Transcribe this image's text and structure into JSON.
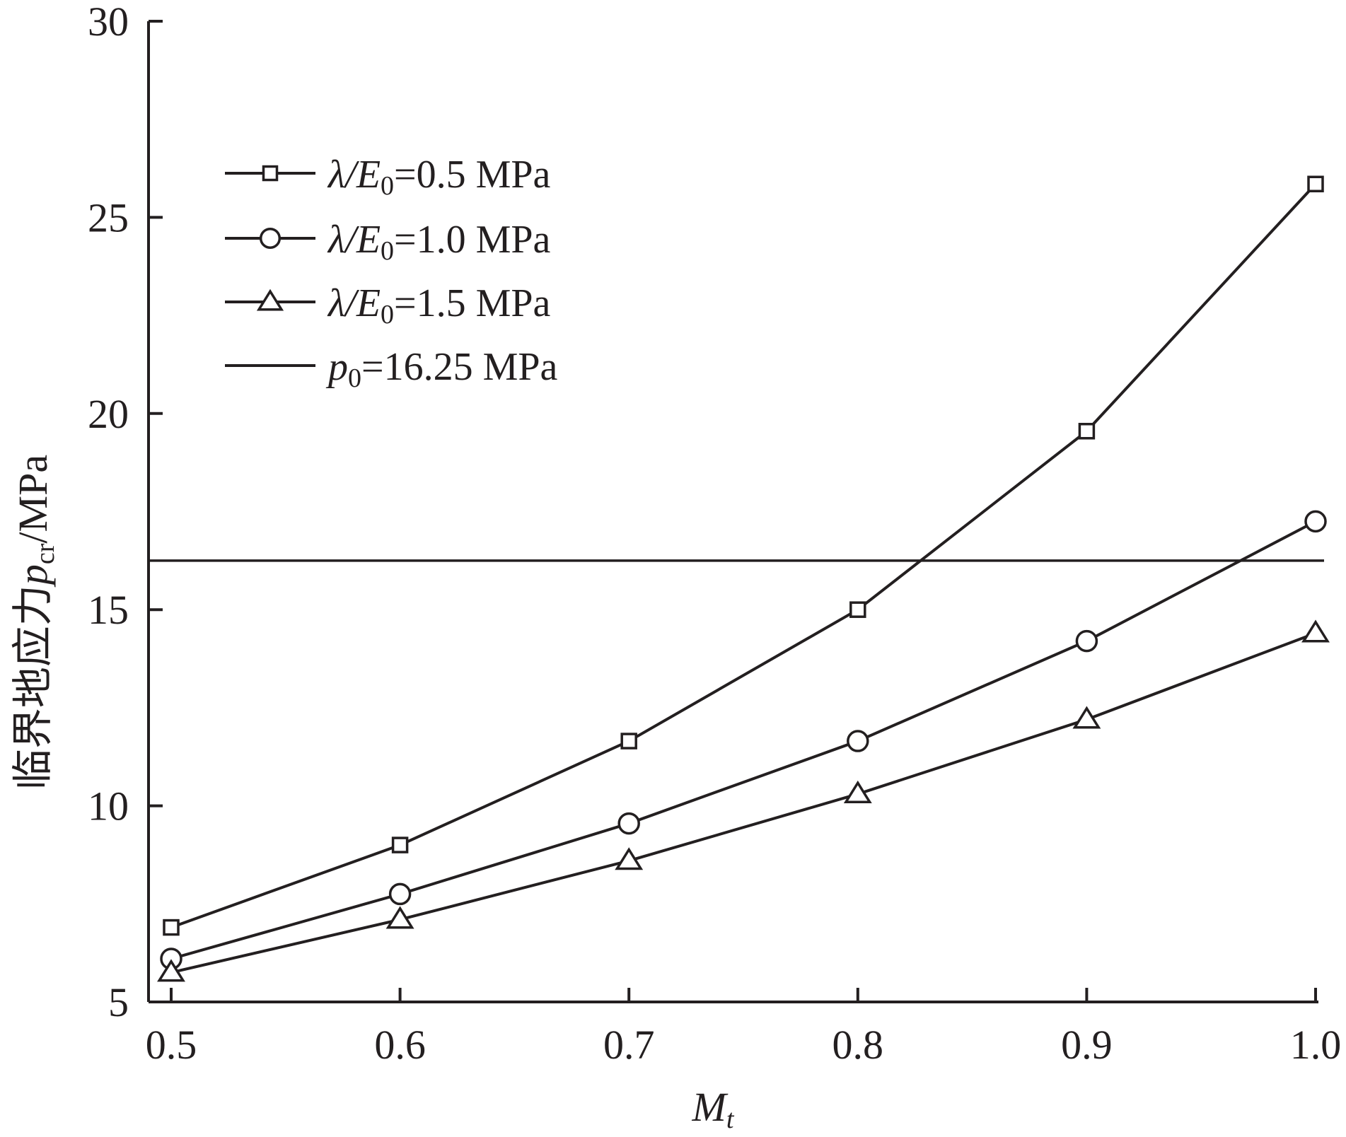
{
  "chart_data": {
    "type": "line",
    "xlabel": {
      "main": "M",
      "sub": "t"
    },
    "ylabel": {
      "prefix": "临界地应力",
      "sym": "p",
      "sub": "cr",
      "suffix": "/MPa"
    },
    "xlim": [
      0.5,
      1.0
    ],
    "ylim": [
      5,
      30
    ],
    "x_ticks": [
      "0.5",
      "0.6",
      "0.7",
      "0.8",
      "0.9",
      "1.0"
    ],
    "y_ticks": [
      "5",
      "10",
      "15",
      "20",
      "25",
      "30"
    ],
    "x": [
      0.5,
      0.6,
      0.7,
      0.8,
      0.9,
      1.0
    ],
    "series": [
      {
        "name": "λ/E0=0.5 MPa",
        "marker": "square",
        "values": [
          6.9,
          9.0,
          11.65,
          15.0,
          19.55,
          25.85
        ]
      },
      {
        "name": "λ/E0=1.0 MPa",
        "marker": "circle",
        "values": [
          6.1,
          7.75,
          9.55,
          11.65,
          14.2,
          17.25
        ]
      },
      {
        "name": "λ/E0=1.5 MPa",
        "marker": "triangle",
        "values": [
          5.75,
          7.1,
          8.6,
          10.3,
          12.2,
          14.4
        ]
      }
    ],
    "reference_line": {
      "name": "p0=16.25 MPa",
      "y": 16.25
    },
    "legend_position": "top-left",
    "grid": false,
    "legend": [
      {
        "sym": "λ/E",
        "sub": "0",
        "rest": "=0.5 MPa"
      },
      {
        "sym": "λ/E",
        "sub": "0",
        "rest": "=1.0 MPa"
      },
      {
        "sym": "λ/E",
        "sub": "0",
        "rest": "=1.5 MPa"
      },
      {
        "sym": "p",
        "sub": "0",
        "rest": "=16.25 MPa"
      }
    ]
  },
  "colors": {
    "ink": "#231f20",
    "background": "#ffffff"
  }
}
